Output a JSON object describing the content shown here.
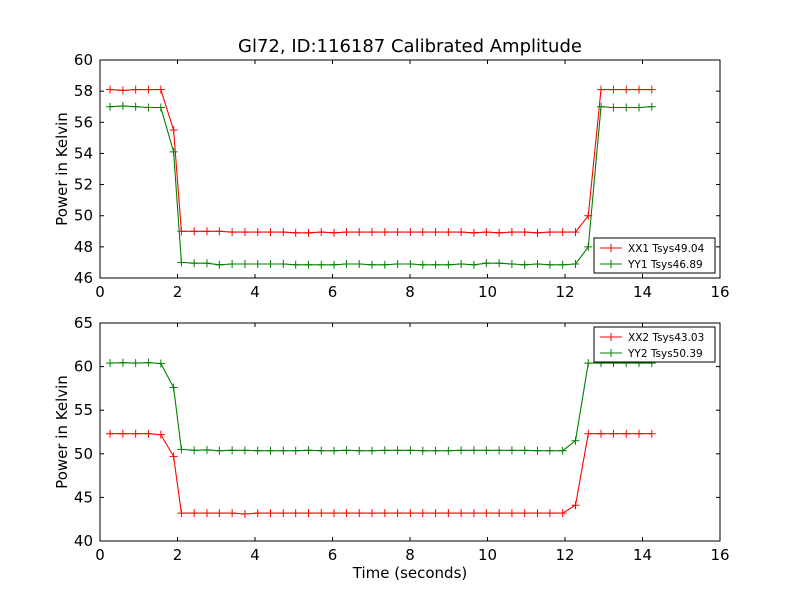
{
  "title": "Gl72, ID:116187 Calibrated Amplitude",
  "chart_data": [
    {
      "type": "line",
      "title": "Gl72, ID:116187 Calibrated Amplitude",
      "xlabel": "",
      "ylabel": "Power in Kelvin",
      "xlim": [
        0,
        16
      ],
      "ylim": [
        46,
        60
      ],
      "xticks": [
        "0",
        "2",
        "4",
        "6",
        "8",
        "10",
        "12",
        "14",
        "16"
      ],
      "yticks": [
        "46",
        "48",
        "50",
        "52",
        "54",
        "56",
        "58",
        "60"
      ],
      "grid": false,
      "legend_position": "lower-right",
      "x": [
        0.26,
        0.59,
        0.92,
        1.25,
        1.57,
        1.9,
        2.1,
        2.43,
        2.76,
        3.08,
        3.41,
        3.74,
        4.07,
        4.4,
        4.73,
        5.05,
        5.38,
        5.71,
        6.04,
        6.36,
        6.69,
        7.02,
        7.35,
        7.68,
        8.01,
        8.33,
        8.66,
        8.99,
        9.32,
        9.65,
        9.97,
        10.3,
        10.63,
        10.96,
        11.29,
        11.61,
        11.94,
        12.27,
        12.6,
        12.93,
        13.25,
        13.58,
        13.91,
        14.24
      ],
      "series": [
        {
          "name": "XX1 Tsys49.04",
          "color": "#ff0000",
          "values": [
            58.1,
            58.05,
            58.1,
            58.1,
            58.1,
            55.5,
            49.0,
            49.0,
            49.0,
            49.0,
            48.95,
            48.95,
            48.95,
            48.95,
            48.95,
            48.9,
            48.9,
            48.95,
            48.9,
            48.95,
            48.95,
            48.95,
            48.95,
            48.95,
            48.95,
            48.95,
            48.95,
            48.95,
            48.95,
            48.9,
            48.95,
            48.9,
            48.95,
            48.95,
            48.9,
            48.95,
            48.95,
            48.95,
            50.0,
            58.1,
            58.1,
            58.1,
            58.1,
            58.1
          ]
        },
        {
          "name": "YY1 Tsys46.89",
          "color": "#008000",
          "values": [
            57.0,
            57.05,
            57.0,
            56.95,
            56.95,
            54.1,
            47.0,
            46.95,
            46.95,
            46.85,
            46.9,
            46.9,
            46.9,
            46.9,
            46.9,
            46.85,
            46.85,
            46.85,
            46.85,
            46.9,
            46.9,
            46.85,
            46.85,
            46.9,
            46.9,
            46.85,
            46.85,
            46.85,
            46.9,
            46.85,
            46.95,
            46.95,
            46.9,
            46.85,
            46.9,
            46.85,
            46.85,
            46.9,
            48.0,
            57.0,
            56.95,
            56.95,
            56.95,
            57.0
          ]
        }
      ]
    },
    {
      "type": "line",
      "title": "",
      "xlabel": "Time (seconds)",
      "ylabel": "Power in Kelvin",
      "xlim": [
        0,
        16
      ],
      "ylim": [
        40,
        65
      ],
      "xticks": [
        "0",
        "2",
        "4",
        "6",
        "8",
        "10",
        "12",
        "14",
        "16"
      ],
      "yticks": [
        "40",
        "45",
        "50",
        "55",
        "60",
        "65"
      ],
      "grid": false,
      "legend_position": "upper-right",
      "x": [
        0.26,
        0.59,
        0.92,
        1.25,
        1.57,
        1.9,
        2.1,
        2.43,
        2.76,
        3.08,
        3.41,
        3.74,
        4.07,
        4.4,
        4.73,
        5.05,
        5.38,
        5.71,
        6.04,
        6.36,
        6.69,
        7.02,
        7.35,
        7.68,
        8.01,
        8.33,
        8.66,
        8.99,
        9.32,
        9.65,
        9.97,
        10.3,
        10.63,
        10.96,
        11.29,
        11.61,
        11.94,
        12.27,
        12.6,
        12.93,
        13.25,
        13.58,
        13.91,
        14.24
      ],
      "series": [
        {
          "name": "XX2 Tsys43.03",
          "color": "#ff0000",
          "values": [
            52.3,
            52.3,
            52.3,
            52.3,
            52.2,
            49.7,
            43.2,
            43.2,
            43.2,
            43.2,
            43.2,
            43.1,
            43.2,
            43.2,
            43.2,
            43.2,
            43.2,
            43.2,
            43.2,
            43.2,
            43.2,
            43.2,
            43.2,
            43.2,
            43.2,
            43.2,
            43.2,
            43.2,
            43.2,
            43.2,
            43.2,
            43.2,
            43.2,
            43.2,
            43.2,
            43.2,
            43.2,
            44.1,
            52.3,
            52.3,
            52.3,
            52.3,
            52.3,
            52.3
          ]
        },
        {
          "name": "YY2 Tsys50.39",
          "color": "#008000",
          "values": [
            60.4,
            60.45,
            60.4,
            60.45,
            60.35,
            57.6,
            50.5,
            50.4,
            50.45,
            50.35,
            50.4,
            50.4,
            50.35,
            50.35,
            50.35,
            50.35,
            50.4,
            50.35,
            50.35,
            50.4,
            50.35,
            50.35,
            50.4,
            50.4,
            50.4,
            50.35,
            50.35,
            50.35,
            50.4,
            50.4,
            50.4,
            50.4,
            50.4,
            50.4,
            50.35,
            50.35,
            50.35,
            51.5,
            60.4,
            60.4,
            60.4,
            60.4,
            60.4,
            60.4
          ]
        }
      ]
    }
  ]
}
